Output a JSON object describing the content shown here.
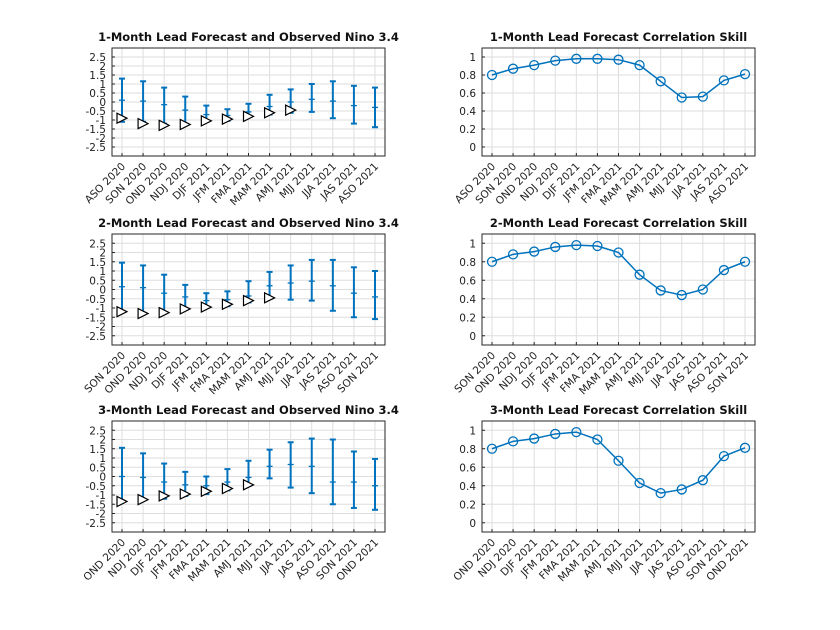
{
  "chart_data": [
    {
      "type": "errorbar",
      "title": "1-Month Lead Forecast and Observed Nino 3.4",
      "categories": [
        "ASO 2020",
        "SON 2020",
        "OND 2020",
        "NDJ 2020",
        "DJF 2021",
        "JFM 2021",
        "FMA 2021",
        "MAM 2021",
        "AMJ 2021",
        "MJJ 2021",
        "JJA 2021",
        "JAS 2021",
        "ASO 2021"
      ],
      "ylim": [
        -3,
        3
      ],
      "yticks": [
        -2.5,
        -2,
        -1.5,
        -1,
        -0.5,
        0,
        0.5,
        1,
        1.5,
        2,
        2.5
      ],
      "ytick_labels": [
        "-2.5",
        "-2",
        "-1.5",
        "-1",
        "-0.5",
        "0",
        "0.5",
        "1",
        "1.5",
        "2",
        "2.5"
      ],
      "forecast_mean": [
        0.1,
        0.05,
        -0.15,
        -0.45,
        -0.7,
        -0.75,
        -0.55,
        -0.25,
        0.0,
        0.15,
        0.05,
        -0.2,
        -0.3
      ],
      "forecast_low": [
        -1.1,
        -1.1,
        -1.2,
        -1.2,
        -1.1,
        -1.05,
        -0.8,
        -0.7,
        -0.6,
        -0.55,
        -0.9,
        -1.2,
        -1.4
      ],
      "forecast_high": [
        1.3,
        1.15,
        0.8,
        0.3,
        -0.2,
        -0.4,
        -0.1,
        0.4,
        0.7,
        1.0,
        1.15,
        0.9,
        0.8
      ],
      "observed": [
        -0.9,
        -1.2,
        -1.3,
        -1.25,
        -1.05,
        -0.95,
        -0.8,
        -0.6,
        -0.45,
        null,
        null,
        null,
        null
      ],
      "grid": true
    },
    {
      "type": "line",
      "title": "1-Month Lead Forecast Correlation Skill",
      "categories": [
        "ASO 2020",
        "SON 2020",
        "OND 2020",
        "NDJ 2020",
        "DJF 2021",
        "JFM 2021",
        "FMA 2021",
        "MAM 2021",
        "AMJ 2021",
        "MJJ 2021",
        "JJA 2021",
        "JAS 2021",
        "ASO 2021"
      ],
      "values": [
        0.8,
        0.87,
        0.91,
        0.96,
        0.98,
        0.98,
        0.97,
        0.91,
        0.73,
        0.55,
        0.56,
        0.74,
        0.81
      ],
      "ylim": [
        -0.1,
        1.1
      ],
      "yticks": [
        0,
        0.2,
        0.4,
        0.6,
        0.8,
        1
      ],
      "ytick_labels": [
        "0",
        "0.2",
        "0.4",
        "0.6",
        "0.8",
        "1"
      ],
      "grid": true
    },
    {
      "type": "errorbar",
      "title": "2-Month Lead Forecast and Observed Nino 3.4",
      "categories": [
        "SON 2020",
        "OND 2020",
        "NDJ 2020",
        "DJF 2021",
        "JFM 2021",
        "FMA 2021",
        "MAM 2021",
        "AMJ 2021",
        "MJJ 2021",
        "JJA 2021",
        "JAS 2021",
        "ASO 2021",
        "SON 2021"
      ],
      "ylim": [
        -3,
        3
      ],
      "yticks": [
        -2.5,
        -2,
        -1.5,
        -1,
        -0.5,
        0,
        0.5,
        1,
        1.5,
        2,
        2.5
      ],
      "ytick_labels": [
        "-2.5",
        "-2",
        "-1.5",
        "-1",
        "-0.5",
        "0",
        "0.5",
        "1",
        "1.5",
        "2",
        "2.5"
      ],
      "forecast_mean": [
        0.15,
        0.1,
        -0.2,
        -0.4,
        -0.6,
        -0.55,
        -0.35,
        0.2,
        0.35,
        0.45,
        0.2,
        -0.2,
        -0.4
      ],
      "forecast_low": [
        -1.2,
        -1.25,
        -1.3,
        -1.1,
        -1.0,
        -0.9,
        -0.7,
        -0.5,
        -0.55,
        -0.6,
        -1.15,
        -1.5,
        -1.6
      ],
      "forecast_high": [
        1.45,
        1.3,
        0.8,
        0.25,
        -0.2,
        -0.1,
        0.45,
        0.95,
        1.3,
        1.6,
        1.6,
        1.2,
        1.0
      ],
      "observed": [
        -1.2,
        -1.3,
        -1.25,
        -1.05,
        -0.95,
        -0.8,
        -0.6,
        -0.45,
        null,
        null,
        null,
        null,
        null
      ],
      "grid": true
    },
    {
      "type": "line",
      "title": "2-Month Lead Forecast Correlation Skill",
      "categories": [
        "SON 2020",
        "OND 2020",
        "NDJ 2020",
        "DJF 2021",
        "JFM 2021",
        "FMA 2021",
        "MAM 2021",
        "AMJ 2021",
        "MJJ 2021",
        "JJA 2021",
        "JAS 2021",
        "ASO 2021",
        "SON 2021"
      ],
      "values": [
        0.8,
        0.88,
        0.91,
        0.96,
        0.98,
        0.97,
        0.9,
        0.66,
        0.49,
        0.44,
        0.5,
        0.71,
        0.8
      ],
      "ylim": [
        -0.1,
        1.1
      ],
      "yticks": [
        0,
        0.2,
        0.4,
        0.6,
        0.8,
        1
      ],
      "ytick_labels": [
        "0",
        "0.2",
        "0.4",
        "0.6",
        "0.8",
        "1"
      ],
      "grid": true
    },
    {
      "type": "errorbar",
      "title": "3-Month Lead Forecast and Observed Nino 3.4",
      "categories": [
        "OND 2020",
        "NDJ 2020",
        "DJF 2021",
        "JFM 2021",
        "FMA 2021",
        "MAM 2021",
        "AMJ 2021",
        "MJJ 2021",
        "JJA 2021",
        "JAS 2021",
        "ASO 2021",
        "SON 2021",
        "OND 2021"
      ],
      "ylim": [
        -3,
        3
      ],
      "yticks": [
        -2.5,
        -2,
        -1.5,
        -1,
        -0.5,
        0,
        0.5,
        1,
        1.5,
        2,
        2.5
      ],
      "ytick_labels": [
        "-2.5",
        "-2",
        "-1.5",
        "-1",
        "-0.5",
        "0",
        "0.5",
        "1",
        "1.5",
        "2",
        "2.5"
      ],
      "forecast_mean": [
        0.0,
        -0.05,
        -0.3,
        -0.45,
        -0.5,
        -0.3,
        -0.05,
        0.55,
        0.65,
        0.55,
        -0.3,
        -0.3,
        -0.5
      ],
      "forecast_low": [
        -1.3,
        -1.3,
        -1.2,
        -1.05,
        -0.95,
        -0.75,
        -0.5,
        -0.1,
        -0.6,
        -0.9,
        -1.5,
        -1.7,
        -1.8
      ],
      "forecast_high": [
        1.55,
        1.25,
        0.7,
        0.25,
        0.0,
        0.4,
        0.85,
        1.45,
        1.85,
        2.05,
        2.0,
        1.35,
        0.95
      ],
      "observed": [
        -1.35,
        -1.25,
        -1.05,
        -0.95,
        -0.8,
        -0.65,
        -0.45,
        null,
        null,
        null,
        null,
        null,
        null
      ],
      "grid": true
    },
    {
      "type": "line",
      "title": "3-Month Lead Forecast Correlation Skill",
      "categories": [
        "OND 2020",
        "NDJ 2020",
        "DJF 2021",
        "JFM 2021",
        "FMA 2021",
        "MAM 2021",
        "AMJ 2021",
        "MJJ 2021",
        "JJA 2021",
        "JAS 2021",
        "ASO 2021",
        "SON 2021",
        "OND 2021"
      ],
      "values": [
        0.8,
        0.88,
        0.91,
        0.96,
        0.98,
        0.9,
        0.67,
        0.43,
        0.32,
        0.36,
        0.46,
        0.72,
        0.81
      ],
      "ylim": [
        -0.1,
        1.1
      ],
      "yticks": [
        0,
        0.2,
        0.4,
        0.6,
        0.8,
        1
      ],
      "ytick_labels": [
        "0",
        "0.2",
        "0.4",
        "0.6",
        "0.8",
        "1"
      ],
      "grid": true
    }
  ],
  "colors": {
    "series": "#0072bd",
    "observed_marker": "#000000",
    "grid": "#dedede"
  }
}
